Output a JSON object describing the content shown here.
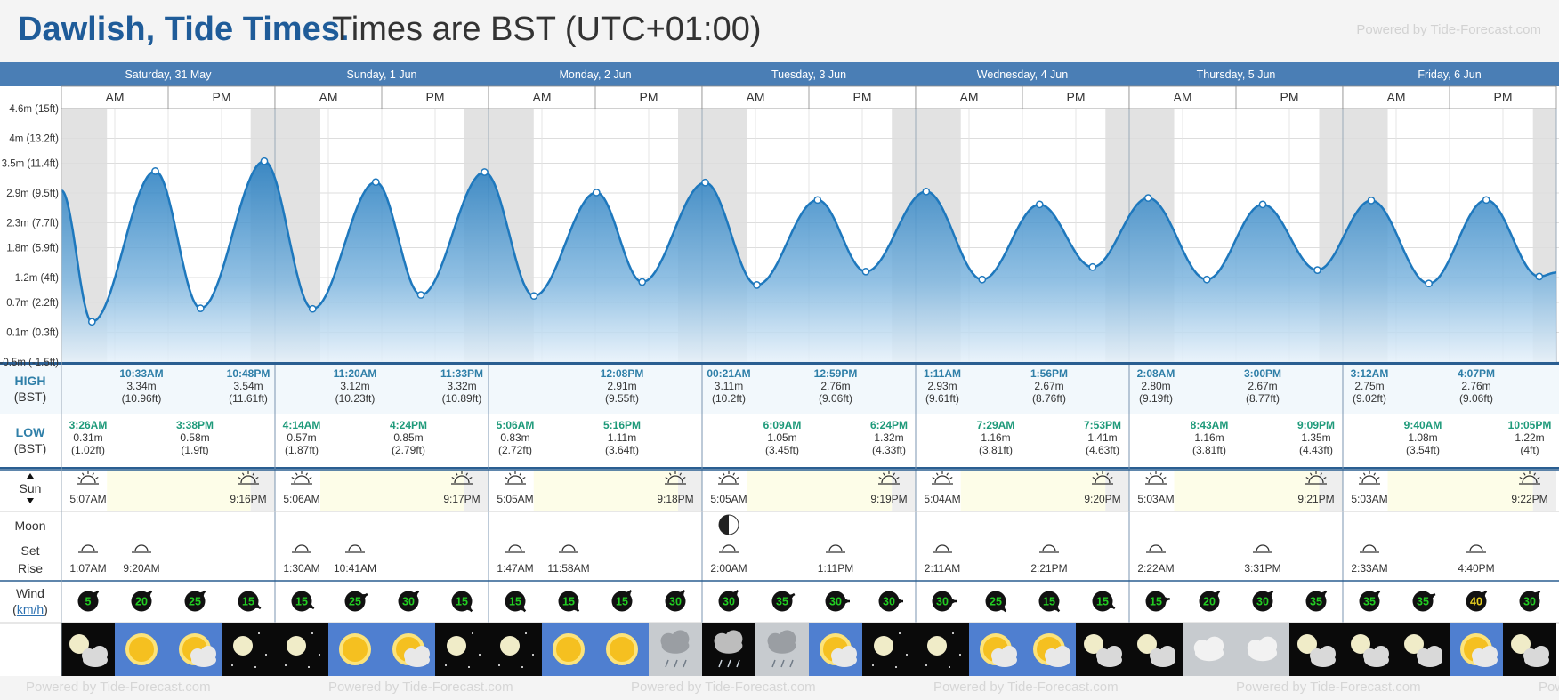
{
  "header": {
    "title_place": "Dawlish, Tide Times.",
    "title_tz": "Times are BST (UTC+01:00)",
    "powered_top": "Powered by Tide-Forecast.com",
    "powered_bottom": "Powered by Tide-Forecast.com"
  },
  "days": [
    {
      "label": "Saturday, 31 May"
    },
    {
      "label": "Sunday, 1 Jun"
    },
    {
      "label": "Monday, 2 Jun"
    },
    {
      "label": "Tuesday, 3 Jun"
    },
    {
      "label": "Wednesday, 4 Jun"
    },
    {
      "label": "Thursday, 5 Jun"
    },
    {
      "label": "Friday, 6 Jun"
    }
  ],
  "ampm": [
    "AM",
    "PM"
  ],
  "row_labels": {
    "high": "HIGH",
    "high_tz": "(BST)",
    "low": "LOW",
    "low_tz": "(BST)",
    "sun": "Sun",
    "moon": "Moon",
    "moon_set": "Set",
    "moon_rise": "Rise",
    "wind": "Wind",
    "wind_unit": "km/h"
  },
  "colors": {
    "header_blue": "#4a7eb5",
    "tide_line": "#1e78bd",
    "high_time": "#2f7fa8",
    "low_time": "#1e9a7a",
    "night_shade": "#e2e2e2",
    "daylight": "#fdfde8"
  },
  "chart_data": {
    "type": "area",
    "title": "Dawlish, Tide Times.",
    "ylabel": "",
    "ylim_m": [
      -0.5,
      4.6
    ],
    "y_ticks": [
      {
        "m": -0.5,
        "label": "-0.5m (-1.5ft)"
      },
      {
        "m": 0.1,
        "label": "0.1m (0.3ft)"
      },
      {
        "m": 0.7,
        "label": "0.7m (2.2ft)"
      },
      {
        "m": 1.2,
        "label": "1.2m (4ft)"
      },
      {
        "m": 1.8,
        "label": "1.8m (5.9ft)"
      },
      {
        "m": 2.3,
        "label": "2.3m (7.7ft)"
      },
      {
        "m": 2.9,
        "label": "2.9m (9.5ft)"
      },
      {
        "m": 3.5,
        "label": "3.5m (11.4ft)"
      },
      {
        "m": 4.0,
        "label": "4m (13.2ft)"
      },
      {
        "m": 4.6,
        "label": "4.6m (15ft)"
      }
    ],
    "x_unit": "hours from Saturday 31 May 00:00 BST",
    "x_range_h": [
      0,
      168
    ],
    "start_level_m": 2.95,
    "end_level_m": 1.3,
    "extremes": [
      {
        "day": 0,
        "type": "low",
        "time": "3:26AM",
        "h": 3.43,
        "m": 0.31,
        "level": "0.31m",
        "ft": "(1.02ft)"
      },
      {
        "day": 0,
        "type": "high",
        "time": "10:33AM",
        "h": 10.55,
        "m": 3.34,
        "level": "3.34m",
        "ft": "(10.96ft)"
      },
      {
        "day": 0,
        "type": "low",
        "time": "3:38PM",
        "h": 15.63,
        "m": 0.58,
        "level": "0.58m",
        "ft": "(1.9ft)"
      },
      {
        "day": 0,
        "type": "high",
        "time": "10:48PM",
        "h": 22.8,
        "m": 3.54,
        "level": "3.54m",
        "ft": "(11.61ft)"
      },
      {
        "day": 1,
        "type": "low",
        "time": "4:14AM",
        "h": 28.23,
        "m": 0.57,
        "level": "0.57m",
        "ft": "(1.87ft)"
      },
      {
        "day": 1,
        "type": "high",
        "time": "11:20AM",
        "h": 35.33,
        "m": 3.12,
        "level": "3.12m",
        "ft": "(10.23ft)"
      },
      {
        "day": 1,
        "type": "low",
        "time": "4:24PM",
        "h": 40.4,
        "m": 0.85,
        "level": "0.85m",
        "ft": "(2.79ft)"
      },
      {
        "day": 1,
        "type": "high",
        "time": "11:33PM",
        "h": 47.55,
        "m": 3.32,
        "level": "3.32m",
        "ft": "(10.89ft)"
      },
      {
        "day": 2,
        "type": "low",
        "time": "5:06AM",
        "h": 53.1,
        "m": 0.83,
        "level": "0.83m",
        "ft": "(2.72ft)"
      },
      {
        "day": 2,
        "type": "low",
        "time": "5:16PM",
        "h": 65.27,
        "m": 1.11,
        "level": "1.11m",
        "ft": "(3.64ft)"
      },
      {
        "day": 2,
        "type": "high",
        "time": "12:08PM",
        "h": 60.13,
        "m": 2.91,
        "level": "2.91m",
        "ft": "(9.55ft)"
      },
      {
        "day": 3,
        "type": "high",
        "time": "00:21AM",
        "h": 72.35,
        "m": 3.11,
        "level": "3.11m",
        "ft": "(10.2ft)"
      },
      {
        "day": 3,
        "type": "low",
        "time": "6:09AM",
        "h": 78.15,
        "m": 1.05,
        "level": "1.05m",
        "ft": "(3.45ft)"
      },
      {
        "day": 3,
        "type": "high",
        "time": "12:59PM",
        "h": 84.98,
        "m": 2.76,
        "level": "2.76m",
        "ft": "(9.06ft)"
      },
      {
        "day": 3,
        "type": "low",
        "time": "6:24PM",
        "h": 90.4,
        "m": 1.32,
        "level": "1.32m",
        "ft": "(4.33ft)"
      },
      {
        "day": 4,
        "type": "high",
        "time": "1:11AM",
        "h": 97.18,
        "m": 2.93,
        "level": "2.93m",
        "ft": "(9.61ft)"
      },
      {
        "day": 4,
        "type": "low",
        "time": "7:29AM",
        "h": 103.48,
        "m": 1.16,
        "level": "1.16m",
        "ft": "(3.81ft)"
      },
      {
        "day": 4,
        "type": "high",
        "time": "1:56PM",
        "h": 109.93,
        "m": 2.67,
        "level": "2.67m",
        "ft": "(8.76ft)"
      },
      {
        "day": 4,
        "type": "low",
        "time": "7:53PM",
        "h": 115.88,
        "m": 1.41,
        "level": "1.41m",
        "ft": "(4.63ft)"
      },
      {
        "day": 5,
        "type": "high",
        "time": "2:08AM",
        "h": 122.13,
        "m": 2.8,
        "level": "2.80m",
        "ft": "(9.19ft)"
      },
      {
        "day": 5,
        "type": "low",
        "time": "8:43AM",
        "h": 128.72,
        "m": 1.16,
        "level": "1.16m",
        "ft": "(3.81ft)"
      },
      {
        "day": 5,
        "type": "high",
        "time": "3:00PM",
        "h": 135.0,
        "m": 2.67,
        "level": "2.67m",
        "ft": "(8.77ft)"
      },
      {
        "day": 5,
        "type": "low",
        "time": "9:09PM",
        "h": 141.15,
        "m": 1.35,
        "level": "1.35m",
        "ft": "(4.43ft)"
      },
      {
        "day": 6,
        "type": "high",
        "time": "3:12AM",
        "h": 147.2,
        "m": 2.75,
        "level": "2.75m",
        "ft": "(9.02ft)"
      },
      {
        "day": 6,
        "type": "low",
        "time": "9:40AM",
        "h": 153.67,
        "m": 1.08,
        "level": "1.08m",
        "ft": "(3.54ft)"
      },
      {
        "day": 6,
        "type": "high",
        "time": "4:07PM",
        "h": 160.12,
        "m": 2.76,
        "level": "2.76m",
        "ft": "(9.06ft)"
      },
      {
        "day": 6,
        "type": "low",
        "time": "10:05PM",
        "h": 166.08,
        "m": 1.22,
        "level": "1.22m",
        "ft": "(4ft)"
      }
    ]
  },
  "sun": [
    {
      "rise": "5:07AM",
      "set": "9:16PM",
      "rise_h": 5.12,
      "set_h": 21.27
    },
    {
      "rise": "5:06AM",
      "set": "9:17PM",
      "rise_h": 5.1,
      "set_h": 21.28
    },
    {
      "rise": "5:05AM",
      "set": "9:18PM",
      "rise_h": 5.08,
      "set_h": 21.3
    },
    {
      "rise": "5:05AM",
      "set": "9:19PM",
      "rise_h": 5.08,
      "set_h": 21.32
    },
    {
      "rise": "5:04AM",
      "set": "9:20PM",
      "rise_h": 5.07,
      "set_h": 21.33
    },
    {
      "rise": "5:03AM",
      "set": "9:21PM",
      "rise_h": 5.05,
      "set_h": 21.35
    },
    {
      "rise": "5:03AM",
      "set": "9:22PM",
      "rise_h": 5.05,
      "set_h": 21.37
    }
  ],
  "moon": [
    {
      "time": "1:07AM",
      "h": 1.12,
      "kind": "set"
    },
    {
      "time": "9:20AM",
      "h": 9.33,
      "kind": "rise"
    },
    {
      "time": "1:30AM",
      "h": 25.5,
      "kind": "set"
    },
    {
      "time": "10:41AM",
      "h": 34.68,
      "kind": "rise"
    },
    {
      "time": "1:47AM",
      "h": 49.78,
      "kind": "set"
    },
    {
      "time": "11:58AM",
      "h": 59.97,
      "kind": "rise"
    },
    {
      "time": "2:00AM",
      "h": 74.0,
      "kind": "set"
    },
    {
      "time": "1:11PM",
      "h": 85.18,
      "kind": "rise"
    },
    {
      "time": "2:11AM",
      "h": 98.18,
      "kind": "set"
    },
    {
      "time": "2:21PM",
      "h": 110.35,
      "kind": "rise"
    },
    {
      "time": "2:22AM",
      "h": 122.37,
      "kind": "set"
    },
    {
      "time": "3:31PM",
      "h": 135.52,
      "kind": "rise"
    },
    {
      "time": "2:33AM",
      "h": 146.55,
      "kind": "set"
    },
    {
      "time": "4:40PM",
      "h": 160.67,
      "kind": "rise"
    }
  ],
  "moon_phase": {
    "icon": "first-quarter-moon-icon",
    "day": 3
  },
  "wind": [
    {
      "speed": "5",
      "dir": 45
    },
    {
      "speed": "20",
      "dir": 45
    },
    {
      "speed": "25",
      "dir": 45
    },
    {
      "speed": "15",
      "dir": 120
    },
    {
      "speed": "15",
      "dir": 120
    },
    {
      "speed": "25",
      "dir": 60
    },
    {
      "speed": "30",
      "dir": 45
    },
    {
      "speed": "15",
      "dir": 135
    },
    {
      "speed": "15",
      "dir": 135
    },
    {
      "speed": "15",
      "dir": 135
    },
    {
      "speed": "15",
      "dir": 40
    },
    {
      "speed": "30",
      "dir": 40
    },
    {
      "speed": "30",
      "dir": 40
    },
    {
      "speed": "35",
      "dir": 60
    },
    {
      "speed": "30",
      "dir": 90
    },
    {
      "speed": "30",
      "dir": 90
    },
    {
      "speed": "30",
      "dir": 90
    },
    {
      "speed": "25",
      "dir": 135
    },
    {
      "speed": "15",
      "dir": 135
    },
    {
      "speed": "15",
      "dir": 120
    },
    {
      "speed": "15",
      "dir": 80
    },
    {
      "speed": "20",
      "dir": 45
    },
    {
      "speed": "30",
      "dir": 45
    },
    {
      "speed": "35",
      "dir": 45
    },
    {
      "speed": "35",
      "dir": 45
    },
    {
      "speed": "35",
      "dir": 60
    },
    {
      "speed": "40",
      "dir": 45
    },
    {
      "speed": "30",
      "dir": 45
    }
  ],
  "wind_colors": {
    "default": "#22cc22",
    "strong": "#e8d020"
  },
  "weather": [
    "night-cloud-icon",
    "sunny-icon",
    "sun-cloud-icon",
    "clear-night-icon",
    "clear-night-icon",
    "sunny-icon",
    "sun-cloud-icon",
    "clear-night-icon",
    "clear-night-icon",
    "sunny-icon",
    "sunny-icon",
    "rain-cloud-icon",
    "night-rain-icon",
    "rain-cloud-icon",
    "sun-cloud-icon",
    "clear-night-icon",
    "clear-night-icon",
    "sun-cloud-icon",
    "sun-cloud-icon",
    "night-cloud-icon",
    "night-cloud-icon",
    "cloudy-icon",
    "cloudy-icon",
    "night-cloud-icon",
    "night-cloud-icon",
    "night-cloud-icon",
    "sun-cloud-icon",
    "night-cloud-icon"
  ]
}
